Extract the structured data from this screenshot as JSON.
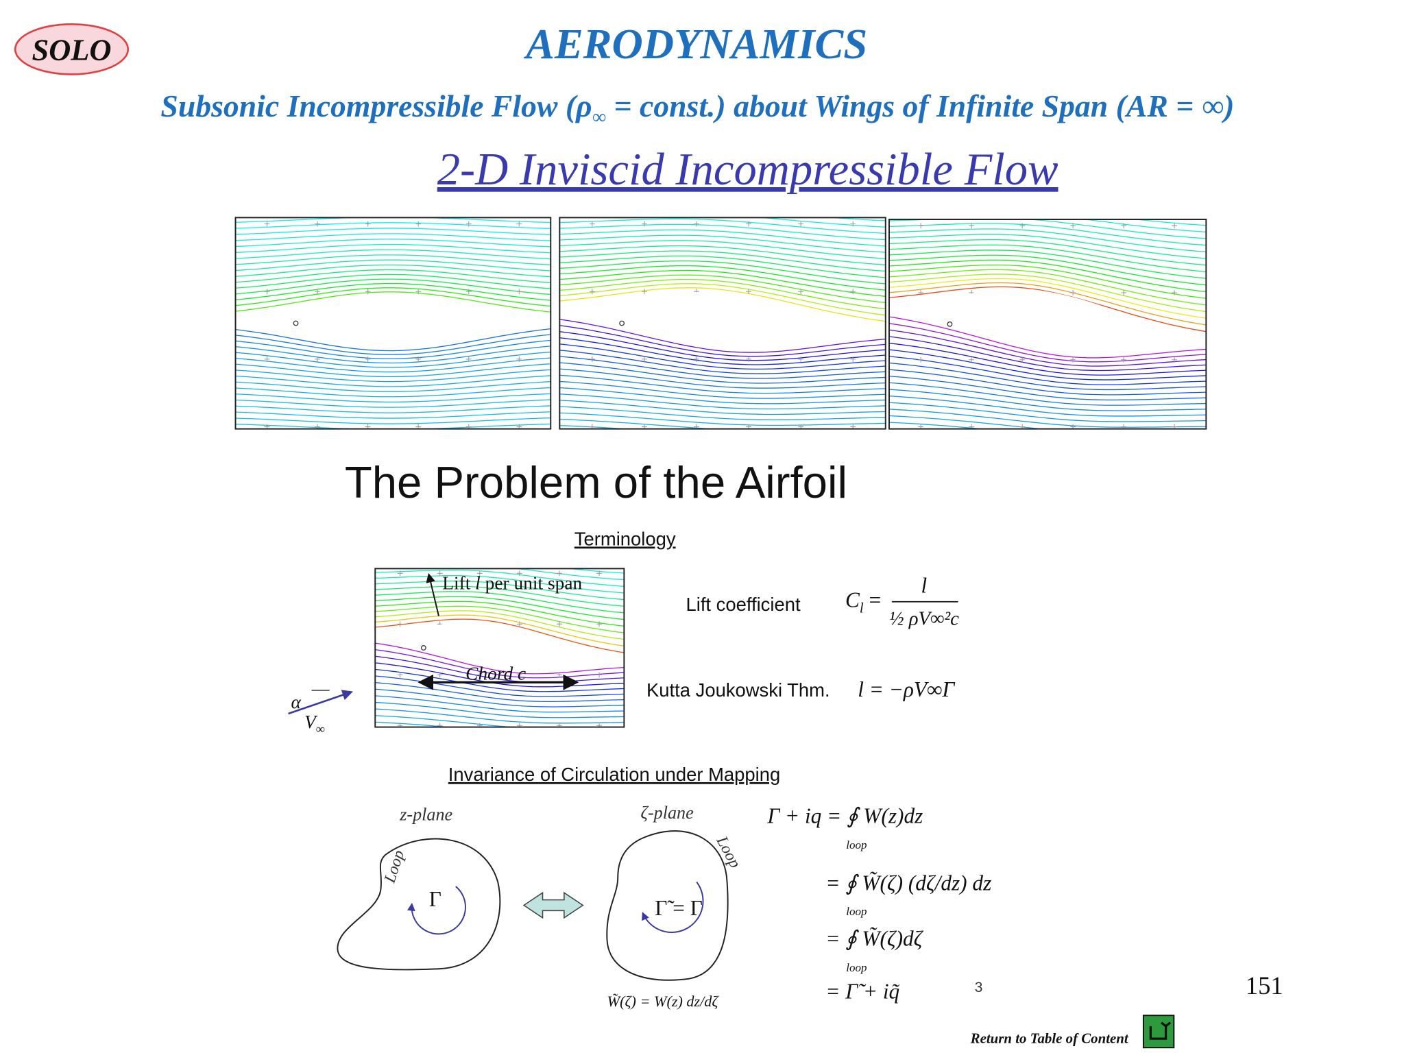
{
  "header": {
    "badge": "SOLO",
    "title": "AERODYNAMICS",
    "subtitle": [
      "Subsonic Incompressible Flow (ρ",
      "∞",
      " = const.) about Wings of Infinite Span (AR = ∞)"
    ],
    "section": "2-D Inviscid Incompressible Flow"
  },
  "slide": {
    "heading": "The Problem of the Airfoil",
    "terminology": "Terminology",
    "lift_label": [
      "Lift ",
      "l",
      " per unit span"
    ],
    "chord_label": "Chord c",
    "alpha": "α",
    "v_inf": [
      "V",
      "∞"
    ],
    "lift_coefficient": "Lift coefficient",
    "lift_formula": {
      "lhs": [
        "C",
        "l",
        " ="
      ],
      "numerator": "l",
      "denominator": "½ ρV∞²c"
    },
    "kutta": "Kutta Joukowski Thm.",
    "kutta_formula": "l = −ρV∞Γ",
    "invariance": "Invariance of Circulation under Mapping",
    "z_plane": "z-plane",
    "zeta_plane": "ζ-plane",
    "loop_word": "Loop",
    "gamma": "Γ",
    "gamma_mapped": "Γ̃ = Γ",
    "mapping_note": "W̃(ζ) = W(z) dz/dζ",
    "equations": [
      "Γ + iq =  ∮ W(z)dz",
      "=  ∮ W̃(ζ) (dζ/dz) dz",
      "=  ∮ W̃(ζ)dζ",
      "= Γ̃ + iq̃"
    ],
    "loop_sub": "loop"
  },
  "footer": {
    "slide_number": "3",
    "page": "151",
    "return_link": "Return to Table of Content"
  }
}
